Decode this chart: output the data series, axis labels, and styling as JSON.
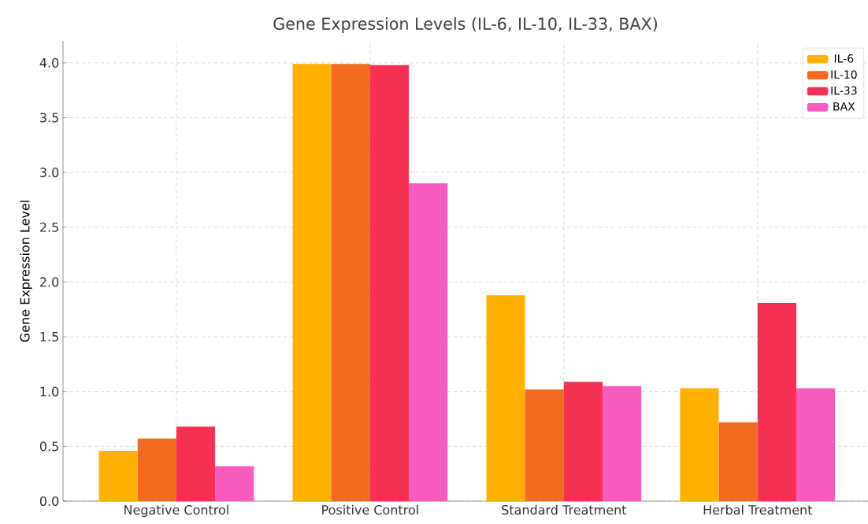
{
  "chart_data": {
    "type": "bar",
    "title": "Gene Expression Levels (IL-6, IL-10, IL-33, BAX)",
    "ylabel": "Gene Expression Level",
    "categories": [
      "Negative Control",
      "Positive Control",
      "Standard Treatment",
      "Herbal Treatment"
    ],
    "series": [
      {
        "name": "IL-6",
        "color": "#ffb000",
        "values": [
          0.46,
          3.99,
          1.88,
          1.03
        ]
      },
      {
        "name": "IL-10",
        "color": "#f26b21",
        "values": [
          0.57,
          3.99,
          1.02,
          0.72
        ]
      },
      {
        "name": "IL-33",
        "color": "#f53255",
        "values": [
          0.68,
          3.98,
          1.09,
          1.81
        ]
      },
      {
        "name": "BAX",
        "color": "#f95cbf",
        "values": [
          0.32,
          2.9,
          1.05,
          1.03
        ]
      }
    ],
    "ylim": [
      0,
      4.2
    ],
    "yticks": [
      {
        "value": 0,
        "label": "0.0"
      },
      {
        "value": 0.5,
        "label": "0.5"
      },
      {
        "value": 1,
        "label": "1.0"
      },
      {
        "value": 1.5,
        "label": "1.5"
      },
      {
        "value": 2,
        "label": "2.0"
      },
      {
        "value": 2.5,
        "label": "2.5"
      },
      {
        "value": 3,
        "label": "3.0"
      },
      {
        "value": 3.5,
        "label": "3.5"
      },
      {
        "value": 4,
        "label": "4.0"
      }
    ],
    "grid": true,
    "legend": "top right"
  }
}
